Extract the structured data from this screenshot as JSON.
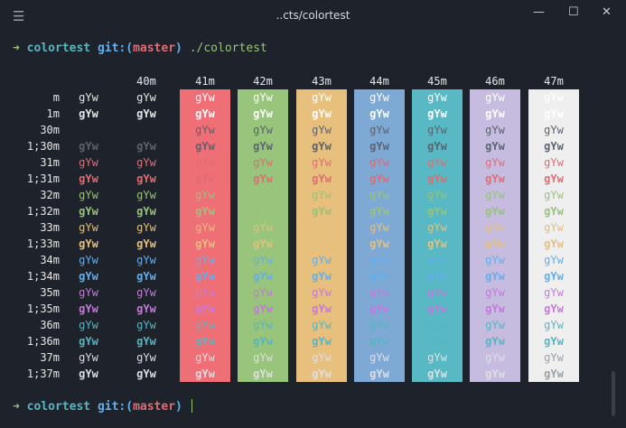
{
  "window": {
    "title": "..cts/colortest",
    "menu_icon": "hamburger-menu-icon",
    "minimize_glyph": "—",
    "maximize_glyph": "☐",
    "close_glyph": "✕"
  },
  "prompts": [
    {
      "arrow": "➜",
      "dir": "colortest",
      "git_prefix": "git:(",
      "branch": "master",
      "git_suffix": ")",
      "command": "./colortest"
    },
    {
      "arrow": "➜",
      "dir": "colortest",
      "git_prefix": "git:(",
      "branch": "master",
      "git_suffix": ")",
      "command": ""
    }
  ],
  "sample_text": "gYw",
  "columns": [
    "",
    "40m",
    "41m",
    "42m",
    "43m",
    "44m",
    "45m",
    "46m",
    "47m"
  ],
  "rows": [
    "m",
    "1m",
    "30m",
    "1;30m",
    "31m",
    "1;31m",
    "32m",
    "1;32m",
    "33m",
    "1;33m",
    "34m",
    "1;34m",
    "35m",
    "1;35m",
    "36m",
    "1;36m",
    "37m",
    "1;37m"
  ],
  "colors": {
    "background": "#1e222a",
    "default_fg": "#e6e6e6",
    "bg_red": "#ef6f77",
    "bg_green": "#99c47c",
    "bg_yellow": "#e7c07d",
    "bg_blue": "#7ea9d5",
    "bg_magenta": "#58b8c3",
    "bg_cyan": "#c6bcdf",
    "bg_white": "#efefef",
    "fg_black": "#5c6370",
    "fg_red": "#e06c75",
    "fg_green": "#98c379",
    "fg_yellow": "#e5c07b",
    "fg_blue": "#61afef",
    "fg_magenta": "#c678dd",
    "fg_cyan": "#56b6c2",
    "fg_white": "#dcdfe4"
  }
}
